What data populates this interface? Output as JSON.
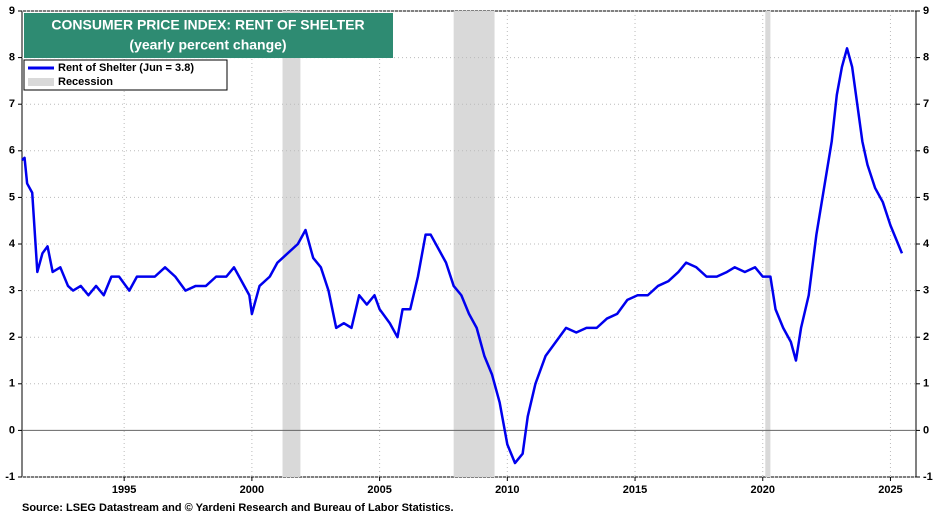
{
  "chart_data": {
    "type": "line",
    "title": "CONSUMER PRICE INDEX: RENT OF SHELTER",
    "subtitle": "(yearly percent change)",
    "source": "Source: LSEG Datastream and © Yardeni Research and Bureau of Labor Statistics.",
    "xlim": [
      1991,
      2026
    ],
    "xticks": [
      1995,
      2000,
      2005,
      2010,
      2015,
      2020,
      2025
    ],
    "ylim": [
      -1,
      9
    ],
    "yticks": [
      -1,
      0,
      1,
      2,
      3,
      4,
      5,
      6,
      7,
      8,
      9
    ],
    "grid": true,
    "legend": "upper left",
    "recession_label": "Recession",
    "recession_color": "#d9d9d9",
    "recessions": [
      [
        2001.2,
        2001.9
      ],
      [
        2007.9,
        2009.5
      ],
      [
        2020.1,
        2020.3
      ]
    ],
    "series": [
      {
        "name": "Rent of Shelter (Jun = 3.8)",
        "color": "#0000ee",
        "x": [
          1991.0,
          1991.1,
          1991.2,
          1991.4,
          1991.6,
          1991.8,
          1992.0,
          1992.2,
          1992.5,
          1992.8,
          1993.0,
          1993.3,
          1993.6,
          1993.9,
          1994.2,
          1994.5,
          1994.8,
          1995.2,
          1995.5,
          1995.9,
          1996.2,
          1996.6,
          1997.0,
          1997.4,
          1997.8,
          1998.2,
          1998.6,
          1999.0,
          1999.3,
          1999.6,
          1999.9,
          2000.0,
          2000.3,
          2000.7,
          2001.0,
          2001.4,
          2001.8,
          2002.1,
          2002.4,
          2002.7,
          2003.0,
          2003.3,
          2003.6,
          2003.9,
          2004.2,
          2004.5,
          2004.8,
          2005.0,
          2005.4,
          2005.7,
          2005.9,
          2006.2,
          2006.5,
          2006.8,
          2007.0,
          2007.3,
          2007.6,
          2007.9,
          2008.2,
          2008.5,
          2008.8,
          2009.1,
          2009.4,
          2009.7,
          2010.0,
          2010.3,
          2010.6,
          2010.8,
          2011.1,
          2011.5,
          2011.9,
          2012.3,
          2012.7,
          2013.1,
          2013.5,
          2013.9,
          2014.3,
          2014.7,
          2015.1,
          2015.5,
          2015.9,
          2016.3,
          2016.7,
          2017.0,
          2017.4,
          2017.8,
          2018.2,
          2018.6,
          2018.9,
          2019.3,
          2019.7,
          2020.0,
          2020.3,
          2020.5,
          2020.8,
          2021.1,
          2021.3,
          2021.5,
          2021.8,
          2022.1,
          2022.4,
          2022.7,
          2022.9,
          2023.1,
          2023.3,
          2023.5,
          2023.7,
          2023.9,
          2024.1,
          2024.4,
          2024.7,
          2025.0,
          2025.3,
          2025.45
        ],
        "values": [
          5.8,
          5.85,
          5.3,
          5.1,
          3.4,
          3.8,
          3.95,
          3.4,
          3.5,
          3.1,
          3.0,
          3.1,
          2.9,
          3.1,
          2.9,
          3.3,
          3.3,
          3.0,
          3.3,
          3.3,
          3.3,
          3.5,
          3.3,
          3.0,
          3.1,
          3.1,
          3.3,
          3.3,
          3.5,
          3.2,
          2.9,
          2.5,
          3.1,
          3.3,
          3.6,
          3.8,
          4.0,
          4.3,
          3.7,
          3.5,
          3.0,
          2.2,
          2.3,
          2.2,
          2.9,
          2.7,
          2.9,
          2.6,
          2.3,
          2.0,
          2.6,
          2.6,
          3.3,
          4.2,
          4.2,
          3.9,
          3.6,
          3.1,
          2.9,
          2.5,
          2.2,
          1.6,
          1.2,
          0.6,
          -0.3,
          -0.7,
          -0.5,
          0.3,
          1.0,
          1.6,
          1.9,
          2.2,
          2.1,
          2.2,
          2.2,
          2.4,
          2.5,
          2.8,
          2.9,
          2.9,
          3.1,
          3.2,
          3.4,
          3.6,
          3.5,
          3.3,
          3.3,
          3.4,
          3.5,
          3.4,
          3.5,
          3.3,
          3.3,
          2.6,
          2.2,
          1.9,
          1.5,
          2.2,
          2.9,
          4.2,
          5.2,
          6.2,
          7.2,
          7.8,
          8.2,
          7.8,
          7.0,
          6.2,
          5.7,
          5.2,
          4.9,
          4.4,
          4.0,
          3.8
        ]
      }
    ]
  }
}
